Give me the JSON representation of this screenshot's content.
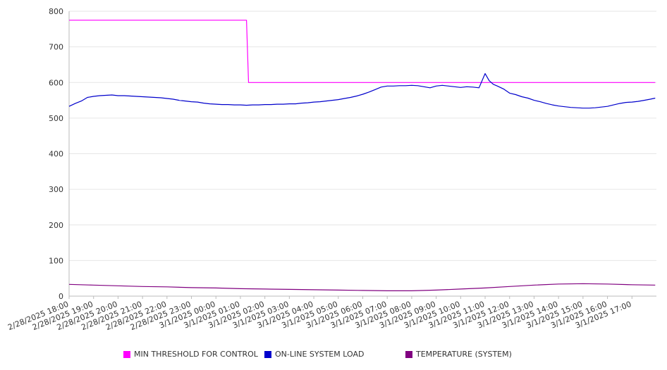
{
  "chart_data": {
    "type": "line",
    "title": "",
    "xlabel": "",
    "ylabel": "",
    "ylim": [
      0,
      800
    ],
    "yticks": [
      0,
      100,
      200,
      300,
      400,
      500,
      600,
      700,
      800
    ],
    "grid": true,
    "legend_position": "bottom",
    "x_tick_labels": [
      "2/28/2025 18:00",
      "2/28/2025 19:00",
      "2/28/2025 20:00",
      "2/28/2025 21:00",
      "2/28/2025 22:00",
      "2/28/2025 23:00",
      "3/1/2025 00:00",
      "3/1/2025 01:00",
      "3/1/2025 02:00",
      "3/1/2025 03:00",
      "3/1/2025 04:00",
      "3/1/2025 05:00",
      "3/1/2025 06:00",
      "3/1/2025 07:00",
      "3/1/2025 08:00",
      "3/1/2025 09:00",
      "3/1/2025 10:00",
      "3/1/2025 11:00",
      "3/1/2025 12:00",
      "3/1/2025 13:00",
      "3/1/2025 14:00",
      "3/1/2025 15:00",
      "3/1/2025 16:00",
      "3/1/2025 17:00"
    ],
    "series": [
      {
        "name": "MIN THRESHOLD FOR CONTROL",
        "color": "#ff00ff",
        "points": [
          [
            "2/28/2025 18:00",
            775
          ],
          [
            "3/1/2025 01:15",
            775
          ],
          [
            "3/1/2025 01:20",
            600
          ],
          [
            "3/1/2025 17:57",
            600
          ]
        ]
      },
      {
        "name": "ON-LINE SYSTEM LOAD",
        "color": "#0000cc",
        "points": [
          [
            "2/28/2025 18:00",
            533
          ],
          [
            "2/28/2025 18:15",
            541
          ],
          [
            "2/28/2025 18:30",
            548
          ],
          [
            "2/28/2025 18:45",
            558
          ],
          [
            "2/28/2025 19:00",
            561
          ],
          [
            "2/28/2025 19:15",
            563
          ],
          [
            "2/28/2025 19:30",
            564
          ],
          [
            "2/28/2025 19:45",
            565
          ],
          [
            "2/28/2025 20:00",
            563
          ],
          [
            "2/28/2025 20:15",
            563
          ],
          [
            "2/28/2025 20:30",
            562
          ],
          [
            "2/28/2025 20:45",
            561
          ],
          [
            "2/28/2025 21:00",
            560
          ],
          [
            "2/28/2025 21:15",
            559
          ],
          [
            "2/28/2025 21:30",
            558
          ],
          [
            "2/28/2025 21:45",
            557
          ],
          [
            "2/28/2025 22:00",
            555
          ],
          [
            "2/28/2025 22:15",
            553
          ],
          [
            "2/28/2025 22:30",
            550
          ],
          [
            "2/28/2025 22:45",
            548
          ],
          [
            "2/28/2025 23:00",
            546
          ],
          [
            "2/28/2025 23:15",
            545
          ],
          [
            "2/28/2025 23:30",
            542
          ],
          [
            "2/28/2025 23:45",
            540
          ],
          [
            "3/1/2025 00:00",
            539
          ],
          [
            "3/1/2025 00:15",
            538
          ],
          [
            "3/1/2025 00:30",
            538
          ],
          [
            "3/1/2025 00:45",
            537
          ],
          [
            "3/1/2025 01:00",
            537
          ],
          [
            "3/1/2025 01:15",
            536
          ],
          [
            "3/1/2025 01:30",
            537
          ],
          [
            "3/1/2025 01:45",
            537
          ],
          [
            "3/1/2025 02:00",
            538
          ],
          [
            "3/1/2025 02:15",
            538
          ],
          [
            "3/1/2025 02:30",
            539
          ],
          [
            "3/1/2025 02:45",
            539
          ],
          [
            "3/1/2025 03:00",
            540
          ],
          [
            "3/1/2025 03:15",
            540
          ],
          [
            "3/1/2025 03:30",
            542
          ],
          [
            "3/1/2025 03:45",
            543
          ],
          [
            "3/1/2025 04:00",
            545
          ],
          [
            "3/1/2025 04:15",
            546
          ],
          [
            "3/1/2025 04:30",
            548
          ],
          [
            "3/1/2025 04:45",
            550
          ],
          [
            "3/1/2025 05:00",
            552
          ],
          [
            "3/1/2025 05:15",
            555
          ],
          [
            "3/1/2025 05:30",
            558
          ],
          [
            "3/1/2025 05:45",
            562
          ],
          [
            "3/1/2025 06:00",
            567
          ],
          [
            "3/1/2025 06:15",
            573
          ],
          [
            "3/1/2025 06:30",
            580
          ],
          [
            "3/1/2025 06:45",
            587
          ],
          [
            "3/1/2025 07:00",
            590
          ],
          [
            "3/1/2025 07:15",
            590
          ],
          [
            "3/1/2025 07:30",
            591
          ],
          [
            "3/1/2025 07:45",
            591
          ],
          [
            "3/1/2025 08:00",
            592
          ],
          [
            "3/1/2025 08:15",
            591
          ],
          [
            "3/1/2025 08:30",
            588
          ],
          [
            "3/1/2025 08:45",
            585
          ],
          [
            "3/1/2025 09:00",
            590
          ],
          [
            "3/1/2025 09:15",
            592
          ],
          [
            "3/1/2025 09:30",
            590
          ],
          [
            "3/1/2025 09:45",
            588
          ],
          [
            "3/1/2025 10:00",
            586
          ],
          [
            "3/1/2025 10:15",
            588
          ],
          [
            "3/1/2025 10:30",
            587
          ],
          [
            "3/1/2025 10:45",
            585
          ],
          [
            "3/1/2025 11:00",
            625
          ],
          [
            "3/1/2025 11:10",
            605
          ],
          [
            "3/1/2025 11:20",
            595
          ],
          [
            "3/1/2025 11:30",
            590
          ],
          [
            "3/1/2025 11:45",
            582
          ],
          [
            "3/1/2025 12:00",
            570
          ],
          [
            "3/1/2025 12:15",
            566
          ],
          [
            "3/1/2025 12:30",
            560
          ],
          [
            "3/1/2025 12:45",
            556
          ],
          [
            "3/1/2025 13:00",
            550
          ],
          [
            "3/1/2025 13:15",
            546
          ],
          [
            "3/1/2025 13:30",
            541
          ],
          [
            "3/1/2025 13:45",
            537
          ],
          [
            "3/1/2025 14:00",
            534
          ],
          [
            "3/1/2025 14:15",
            532
          ],
          [
            "3/1/2025 14:30",
            530
          ],
          [
            "3/1/2025 14:45",
            529
          ],
          [
            "3/1/2025 15:00",
            528
          ],
          [
            "3/1/2025 15:15",
            528
          ],
          [
            "3/1/2025 15:30",
            529
          ],
          [
            "3/1/2025 15:45",
            531
          ],
          [
            "3/1/2025 16:00",
            533
          ],
          [
            "3/1/2025 16:15",
            537
          ],
          [
            "3/1/2025 16:30",
            541
          ],
          [
            "3/1/2025 16:45",
            544
          ],
          [
            "3/1/2025 17:00",
            545
          ],
          [
            "3/1/2025 17:15",
            547
          ],
          [
            "3/1/2025 17:30",
            550
          ],
          [
            "3/1/2025 17:45",
            553
          ],
          [
            "3/1/2025 17:57",
            556
          ]
        ]
      },
      {
        "name": "TEMPERATURE (SYSTEM)",
        "color": "#800080",
        "points": [
          [
            "2/28/2025 18:00",
            33
          ],
          [
            "2/28/2025 19:00",
            31
          ],
          [
            "2/28/2025 20:00",
            29
          ],
          [
            "2/28/2025 21:00",
            27
          ],
          [
            "2/28/2025 22:00",
            26
          ],
          [
            "2/28/2025 23:00",
            24
          ],
          [
            "3/1/2025 00:00",
            23
          ],
          [
            "3/1/2025 01:00",
            21
          ],
          [
            "3/1/2025 02:00",
            20
          ],
          [
            "3/1/2025 03:00",
            19
          ],
          [
            "3/1/2025 04:00",
            18
          ],
          [
            "3/1/2025 05:00",
            17
          ],
          [
            "3/1/2025 06:00",
            16
          ],
          [
            "3/1/2025 07:00",
            15
          ],
          [
            "3/1/2025 08:00",
            15
          ],
          [
            "3/1/2025 09:00",
            17
          ],
          [
            "3/1/2025 10:00",
            20
          ],
          [
            "3/1/2025 11:00",
            23
          ],
          [
            "3/1/2025 12:00",
            27
          ],
          [
            "3/1/2025 13:00",
            31
          ],
          [
            "3/1/2025 14:00",
            34
          ],
          [
            "3/1/2025 15:00",
            35
          ],
          [
            "3/1/2025 16:00",
            34
          ],
          [
            "3/1/2025 17:00",
            32
          ],
          [
            "3/1/2025 17:57",
            31
          ]
        ]
      }
    ]
  }
}
